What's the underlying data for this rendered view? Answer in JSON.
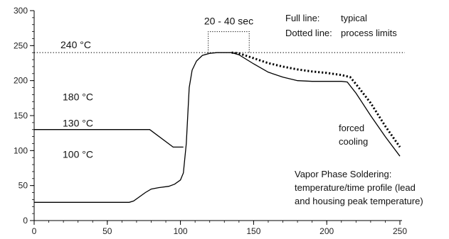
{
  "chart_data": {
    "type": "line",
    "title": "",
    "xlabel": "",
    "ylabel": "",
    "xlim": [
      0,
      250
    ],
    "ylim": [
      0,
      300
    ],
    "x_ticks": [
      0,
      50,
      100,
      150,
      200,
      250
    ],
    "y_ticks": [
      0,
      50,
      100,
      150,
      200,
      250,
      300
    ],
    "grid": false,
    "legend": {
      "full_line_key": "Full line:",
      "full_line_value": "typical",
      "dotted_line_key": "Dotted line:",
      "dotted_line_value": "process limits"
    },
    "series": [
      {
        "style": "solid",
        "x": [
          0,
          65,
          68,
          72,
          76,
          80,
          85,
          92,
          96,
          100,
          102,
          104,
          106,
          108,
          111,
          115,
          120,
          125,
          130,
          135,
          140,
          150,
          160,
          170,
          180,
          190,
          200,
          210,
          214,
          220,
          230,
          240,
          250
        ],
        "y": [
          26,
          26,
          28,
          34,
          40,
          45,
          47,
          49,
          52,
          58,
          68,
          110,
          190,
          215,
          228,
          236,
          239,
          240,
          240,
          240,
          237,
          224,
          212,
          205,
          200,
          199,
          199,
          199,
          198,
          182,
          150,
          120,
          92
        ]
      },
      {
        "style": "solid",
        "x": [
          0,
          79,
          95,
          102
        ],
        "y": [
          130,
          130,
          105,
          105
        ]
      },
      {
        "style": "dotted",
        "x": [
          135,
          140,
          150,
          160,
          170,
          180,
          190,
          200,
          210,
          216,
          220,
          230,
          240,
          250
        ],
        "y": [
          240,
          239,
          232,
          225,
          220,
          216,
          213,
          211,
          208,
          205,
          195,
          168,
          135,
          105
        ]
      }
    ],
    "reference_lines": [
      {
        "y": 240,
        "style": "dotted",
        "label": "240 °C"
      }
    ],
    "level_labels": [
      {
        "text": "180 °C",
        "level": 180
      },
      {
        "text": "130 °C",
        "level": 130
      },
      {
        "text": "100 °C",
        "level": 100
      }
    ],
    "bracket": {
      "label": "20 - 40 sec",
      "x_start": 119,
      "x_end": 147,
      "y_top": 270,
      "y_bottom": 240
    },
    "annotations": {
      "cooling": [
        "forced",
        "cooling"
      ],
      "description": [
        "Vapor Phase Soldering:",
        "temperature/time profile (lead",
        "and housing peak temperature)"
      ]
    }
  }
}
